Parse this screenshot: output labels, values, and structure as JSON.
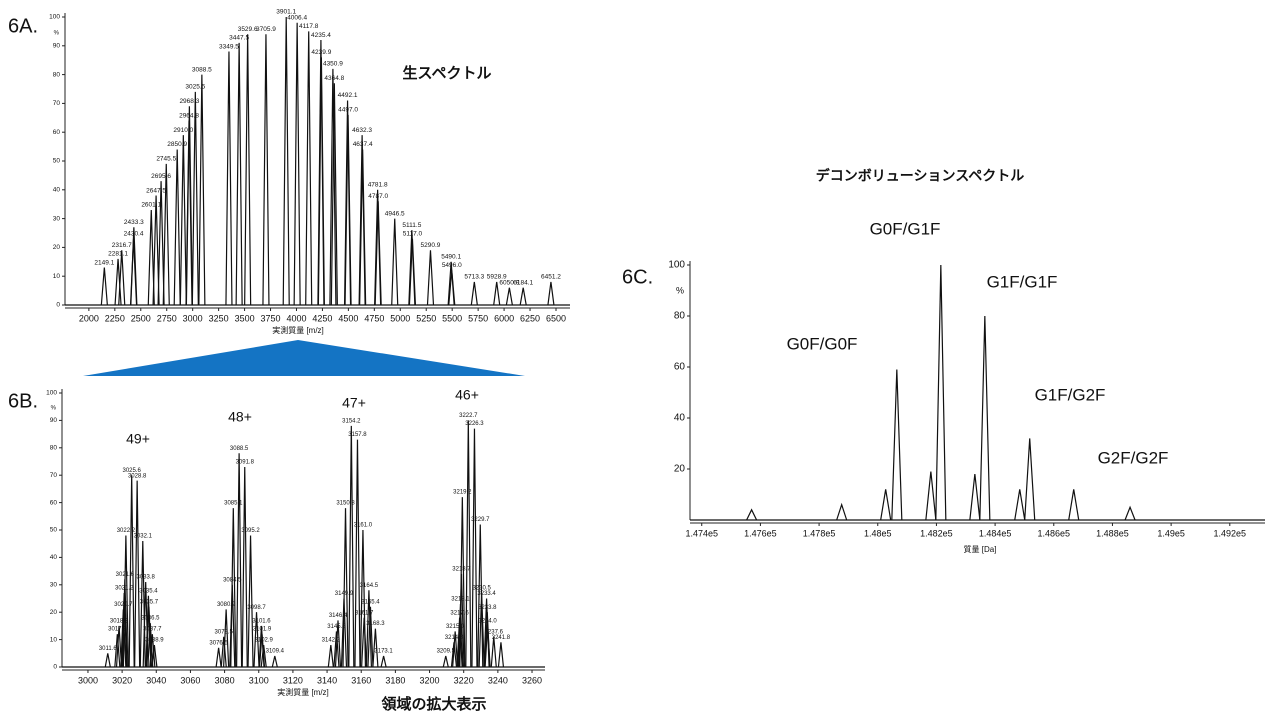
{
  "chart_data": [
    {
      "type": "spectrum",
      "label": "6A.",
      "title": "生スペクトル",
      "xlabel": "実測質量 [m/z]",
      "ylabel": "%",
      "color": "#111111",
      "x": [
        2149.1,
        2281.1,
        2316.7,
        2430.4,
        2433.3,
        2601.1,
        2647.5,
        2695.6,
        2745.5,
        2850.9,
        2910.0,
        2964.8,
        2968.3,
        3025.5,
        3088.5,
        3349.5,
        3447.5,
        3529.6,
        3705.9,
        3901.1,
        4006.4,
        4117.8,
        4235.4,
        4239.9,
        4350.9,
        4364.8,
        4492.1,
        4497.0,
        4632.3,
        4637.4,
        4781.8,
        4787.0,
        4946.5,
        5111.5,
        5117.0,
        5290.9,
        5490.1,
        5496.0,
        5713.3,
        5928.9,
        6050.9,
        6184.1,
        6451.2
      ],
      "x_labels": [
        "2149.1",
        "2281.1",
        "2316.7",
        "2430.4",
        "2433.3",
        "2601.1",
        "2647.5",
        "2695.6",
        "2745.5",
        "2850.9",
        "2910.0",
        "2964.8",
        "2968.3",
        "3025.5",
        "3088.5",
        "3349.5",
        "3447.5",
        "3529.6",
        "3705.9",
        "3901.1",
        "4006.4",
        "4117.8",
        "4235.4",
        "4239.9",
        "4350.9",
        "4364.8",
        "4492.1",
        "4497.0",
        "4632.3",
        "4637.4",
        "4781.8",
        "4787.0",
        "4946.5",
        "5111.5",
        "5117.0",
        "5290.9",
        "5490.1",
        "5496.0",
        "5713.3",
        "5928.9",
        "6050.9",
        "6184.1",
        "6451.2"
      ],
      "values": [
        13,
        16,
        19,
        23,
        27,
        33,
        38,
        43,
        49,
        54,
        59,
        64,
        69,
        74,
        80,
        88,
        91,
        94,
        94,
        100,
        98,
        95,
        92,
        86,
        82,
        77,
        71,
        66,
        59,
        54,
        40,
        36,
        30,
        26,
        23,
        19,
        15,
        12,
        8,
        8,
        6,
        6,
        8
      ],
      "xlim": [
        1770,
        6635
      ],
      "ylim": [
        0,
        100
      ],
      "xticks": [
        2000,
        2250,
        2500,
        2750,
        3000,
        3250,
        3500,
        3750,
        4000,
        4250,
        4500,
        4750,
        5000,
        5250,
        5500,
        5750,
        6000,
        6250,
        6500
      ],
      "yticks": [
        0,
        10,
        20,
        30,
        40,
        50,
        60,
        70,
        80,
        90,
        100
      ]
    },
    {
      "type": "spectrum",
      "label": "6B.",
      "title": "領域の拡大表示",
      "xlabel": "実測質量 [m/z]",
      "ylabel": "%",
      "color": "#111111",
      "annotation_color": "#1f7bbf",
      "annotations": [
        "49+",
        "48+",
        "47+",
        "46+"
      ],
      "x": [
        3011.6,
        3017.2,
        3018.2,
        3020.7,
        3021.2,
        3021.6,
        3022.2,
        3025.6,
        3028.8,
        3032.1,
        3033.8,
        3035.4,
        3035.7,
        3036.5,
        3037.7,
        3038.9,
        3076.5,
        3079.5,
        3080.9,
        3084.5,
        3085.1,
        3088.5,
        3091.8,
        3095.2,
        3098.7,
        3101.6,
        3101.9,
        3102.9,
        3109.4,
        3142.2,
        3145.5,
        3146.4,
        3149.9,
        3150.8,
        3154.2,
        3157.8,
        3161.0,
        3164.5,
        3165.4,
        3161.7,
        3168.3,
        3173.1,
        3209.5,
        3214.3,
        3215.0,
        3217.6,
        3218.1,
        3218.7,
        3219.2,
        3222.7,
        3226.3,
        3229.7,
        3230.5,
        3233.4,
        3233.8,
        3234.0,
        3237.6,
        3241.8
      ],
      "x_labels": [
        "3011.6",
        "3017.2",
        "3018.2",
        "3020.7",
        "3021.2",
        "3021.6",
        "3022.2",
        "3025.6",
        "3028.8",
        "3032.1",
        "3033.8",
        "3035.4",
        "3035.7",
        "3036.5",
        "3037.7",
        "3038.9",
        "3076.5",
        "3079.5",
        "3080.9",
        "3084.5",
        "3085.1",
        "3088.5",
        "3091.8",
        "3095.2",
        "3098.7",
        "3101.6",
        "3101.9",
        "3102.9",
        "3109.4",
        "3142.2",
        "3145.5",
        "3146.4",
        "3149.9",
        "3150.8",
        "3154.2",
        "3157.8",
        "3161.0",
        "3164.5",
        "3165.4",
        "3161.7",
        "3168.3",
        "3173.1",
        "3209.5",
        "3214.3",
        "3215.0",
        "3217.6",
        "3218.1",
        "3218.7",
        "3219.2",
        "3222.7",
        "3226.3",
        "3229.7",
        "3230.5",
        "3233.4",
        "3233.8",
        "3234.0",
        "3237.6",
        "3241.8"
      ],
      "values": [
        5,
        12,
        15,
        21,
        27,
        32,
        48,
        70,
        68,
        46,
        31,
        26,
        22,
        16,
        12,
        8,
        7,
        11,
        21,
        30,
        58,
        78,
        73,
        48,
        20,
        15,
        12,
        8,
        4,
        8,
        13,
        17,
        25,
        58,
        88,
        83,
        50,
        28,
        22,
        18,
        14,
        4,
        4,
        9,
        13,
        18,
        23,
        34,
        62,
        90,
        87,
        52,
        27,
        25,
        20,
        15,
        11,
        9
      ],
      "xlim": [
        2984.8,
        3267.6
      ],
      "ylim": [
        0,
        100
      ],
      "xticks": [
        3000,
        3020,
        3040,
        3060,
        3080,
        3100,
        3120,
        3140,
        3160,
        3180,
        3200,
        3220,
        3240,
        3260
      ],
      "yticks": [
        0,
        10,
        20,
        30,
        40,
        50,
        60,
        70,
        80,
        90,
        100
      ]
    },
    {
      "type": "spectrum",
      "label": "6C.",
      "title": "デコンボリューションスペクトル",
      "xlabel": "質量 [Da]",
      "ylabel": "%",
      "color": "#111111",
      "annotation_color": "#111111",
      "annotations": [
        "G0F/G0F",
        "G0F/G1F",
        "G1F/G1F",
        "G1F/G2F",
        "G2F/G2F"
      ],
      "x": [
        147570,
        147877,
        148027,
        148065,
        148181,
        148215,
        148331,
        148365,
        148484,
        148518,
        148668,
        148860
      ],
      "values": [
        4,
        6,
        12,
        59,
        19,
        100,
        18,
        80,
        12,
        32,
        12,
        5
      ],
      "xlim": [
        147360,
        149320
      ],
      "ylim": [
        0,
        100
      ],
      "xticks": [
        {
          "value": 147400,
          "label": "1.474e5"
        },
        {
          "value": 147600,
          "label": "1.476e5"
        },
        {
          "value": 147800,
          "label": "1.478e5"
        },
        {
          "value": 148000,
          "label": "1.48e5"
        },
        {
          "value": 148200,
          "label": "1.482e5"
        },
        {
          "value": 148400,
          "label": "1.484e5"
        },
        {
          "value": 148600,
          "label": "1.486e5"
        },
        {
          "value": 148800,
          "label": "1.488e5"
        },
        {
          "value": 149000,
          "label": "1.49e5"
        },
        {
          "value": 149200,
          "label": "1.492e5"
        }
      ],
      "yticks": [
        20,
        40,
        60,
        80,
        100
      ]
    }
  ]
}
